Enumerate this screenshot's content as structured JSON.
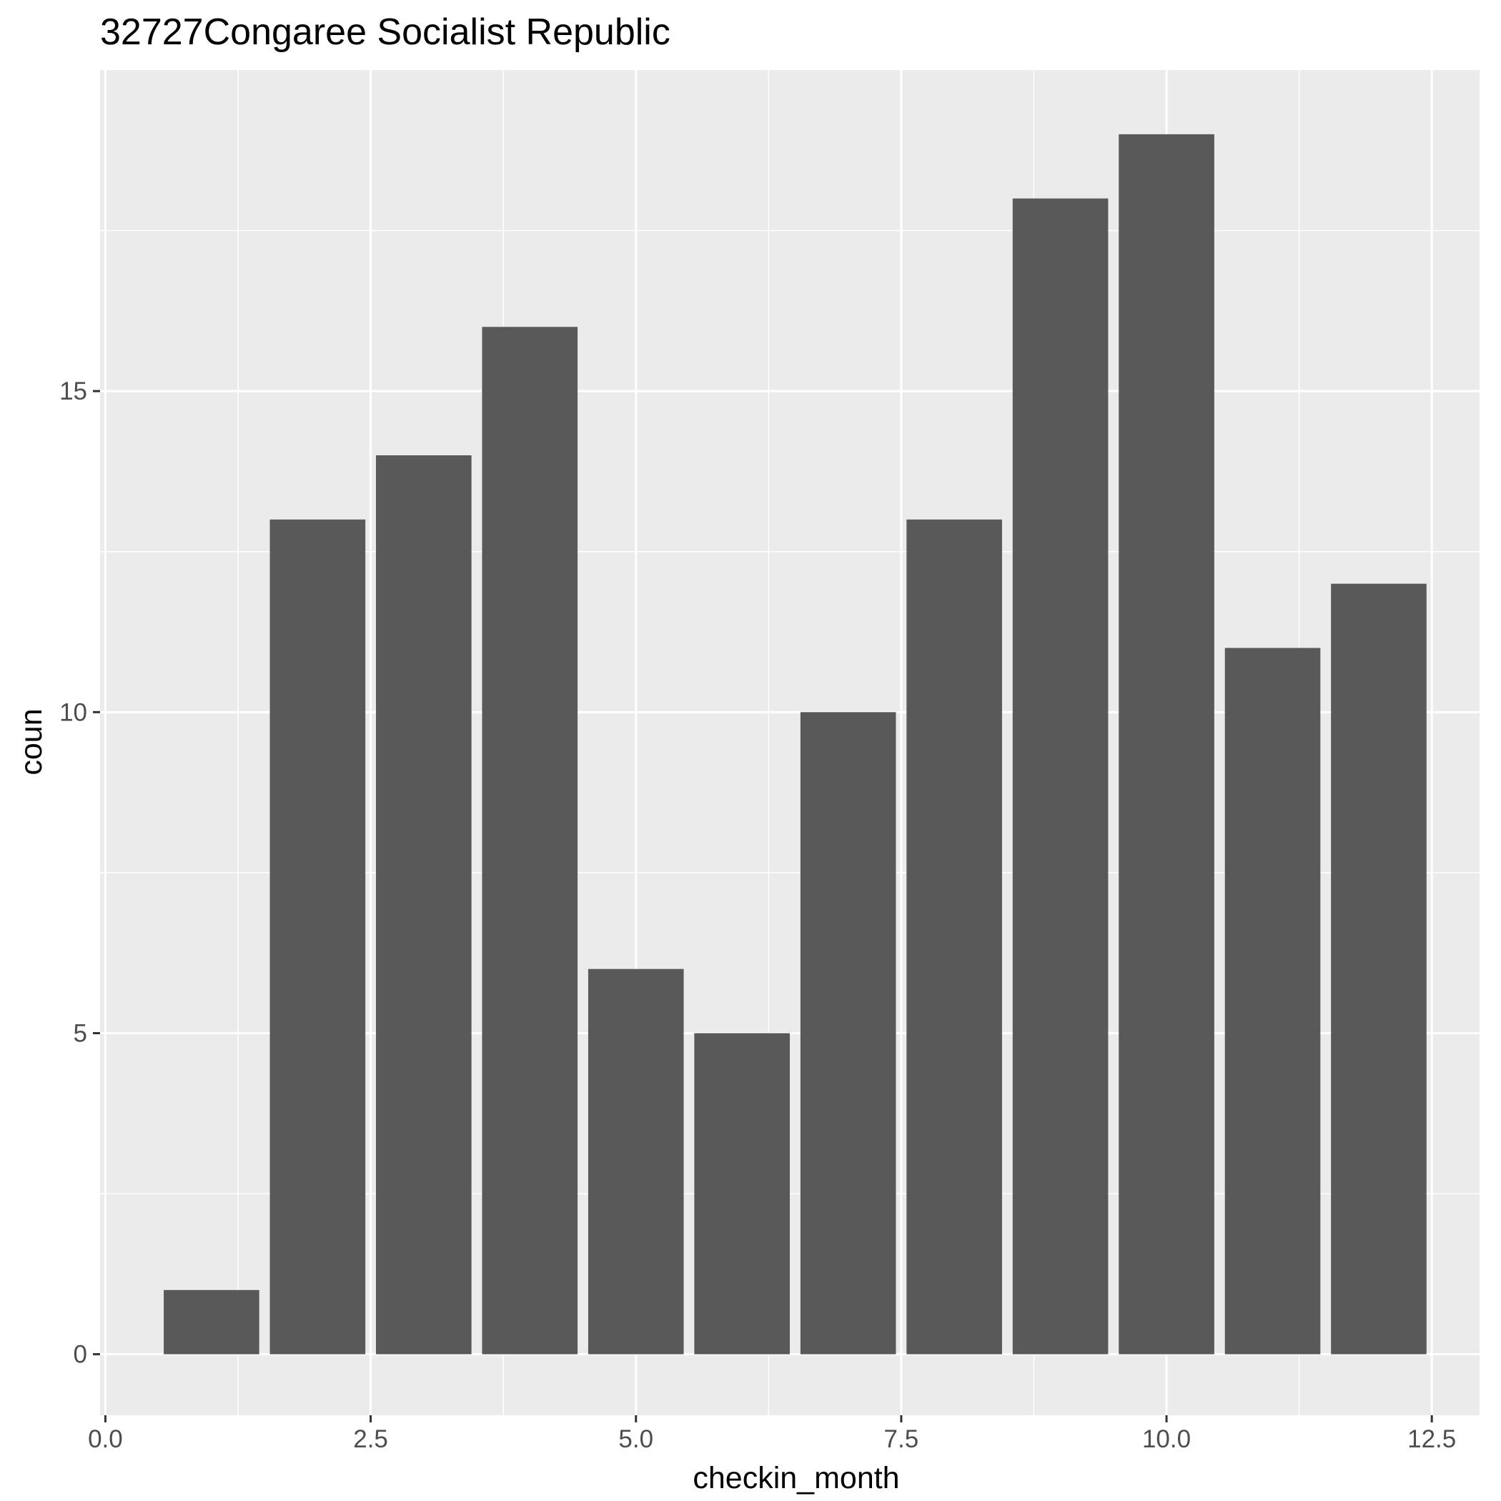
{
  "chart_data": {
    "type": "bar",
    "title": "32727Congaree Socialist Republic",
    "xlabel": "checkin_month",
    "ylabel": "coun",
    "x": [
      1,
      2,
      3,
      4,
      5,
      6,
      7,
      8,
      9,
      10,
      11,
      12
    ],
    "values": [
      1,
      13,
      14,
      16,
      6,
      5,
      10,
      13,
      18,
      19,
      11,
      12
    ],
    "bar_width": 0.9,
    "xlim": [
      -0.05,
      12.95
    ],
    "ylim": [
      -0.95,
      20.0
    ],
    "x_ticks": [
      0,
      2.5,
      5,
      7.5,
      10,
      12.5
    ],
    "x_tick_labels": [
      "0.0",
      "2.5",
      "5.0",
      "7.5",
      "10.0",
      "12.5"
    ],
    "y_ticks": [
      0,
      5,
      10,
      15
    ],
    "y_tick_labels": [
      "0",
      "5",
      "10",
      "15"
    ],
    "grid": true,
    "colors": {
      "bar": "#595959",
      "panel": "#ebebeb",
      "grid": "#ffffff",
      "tick_label": "#4d4d4d",
      "axis_tick": "#333333"
    }
  }
}
